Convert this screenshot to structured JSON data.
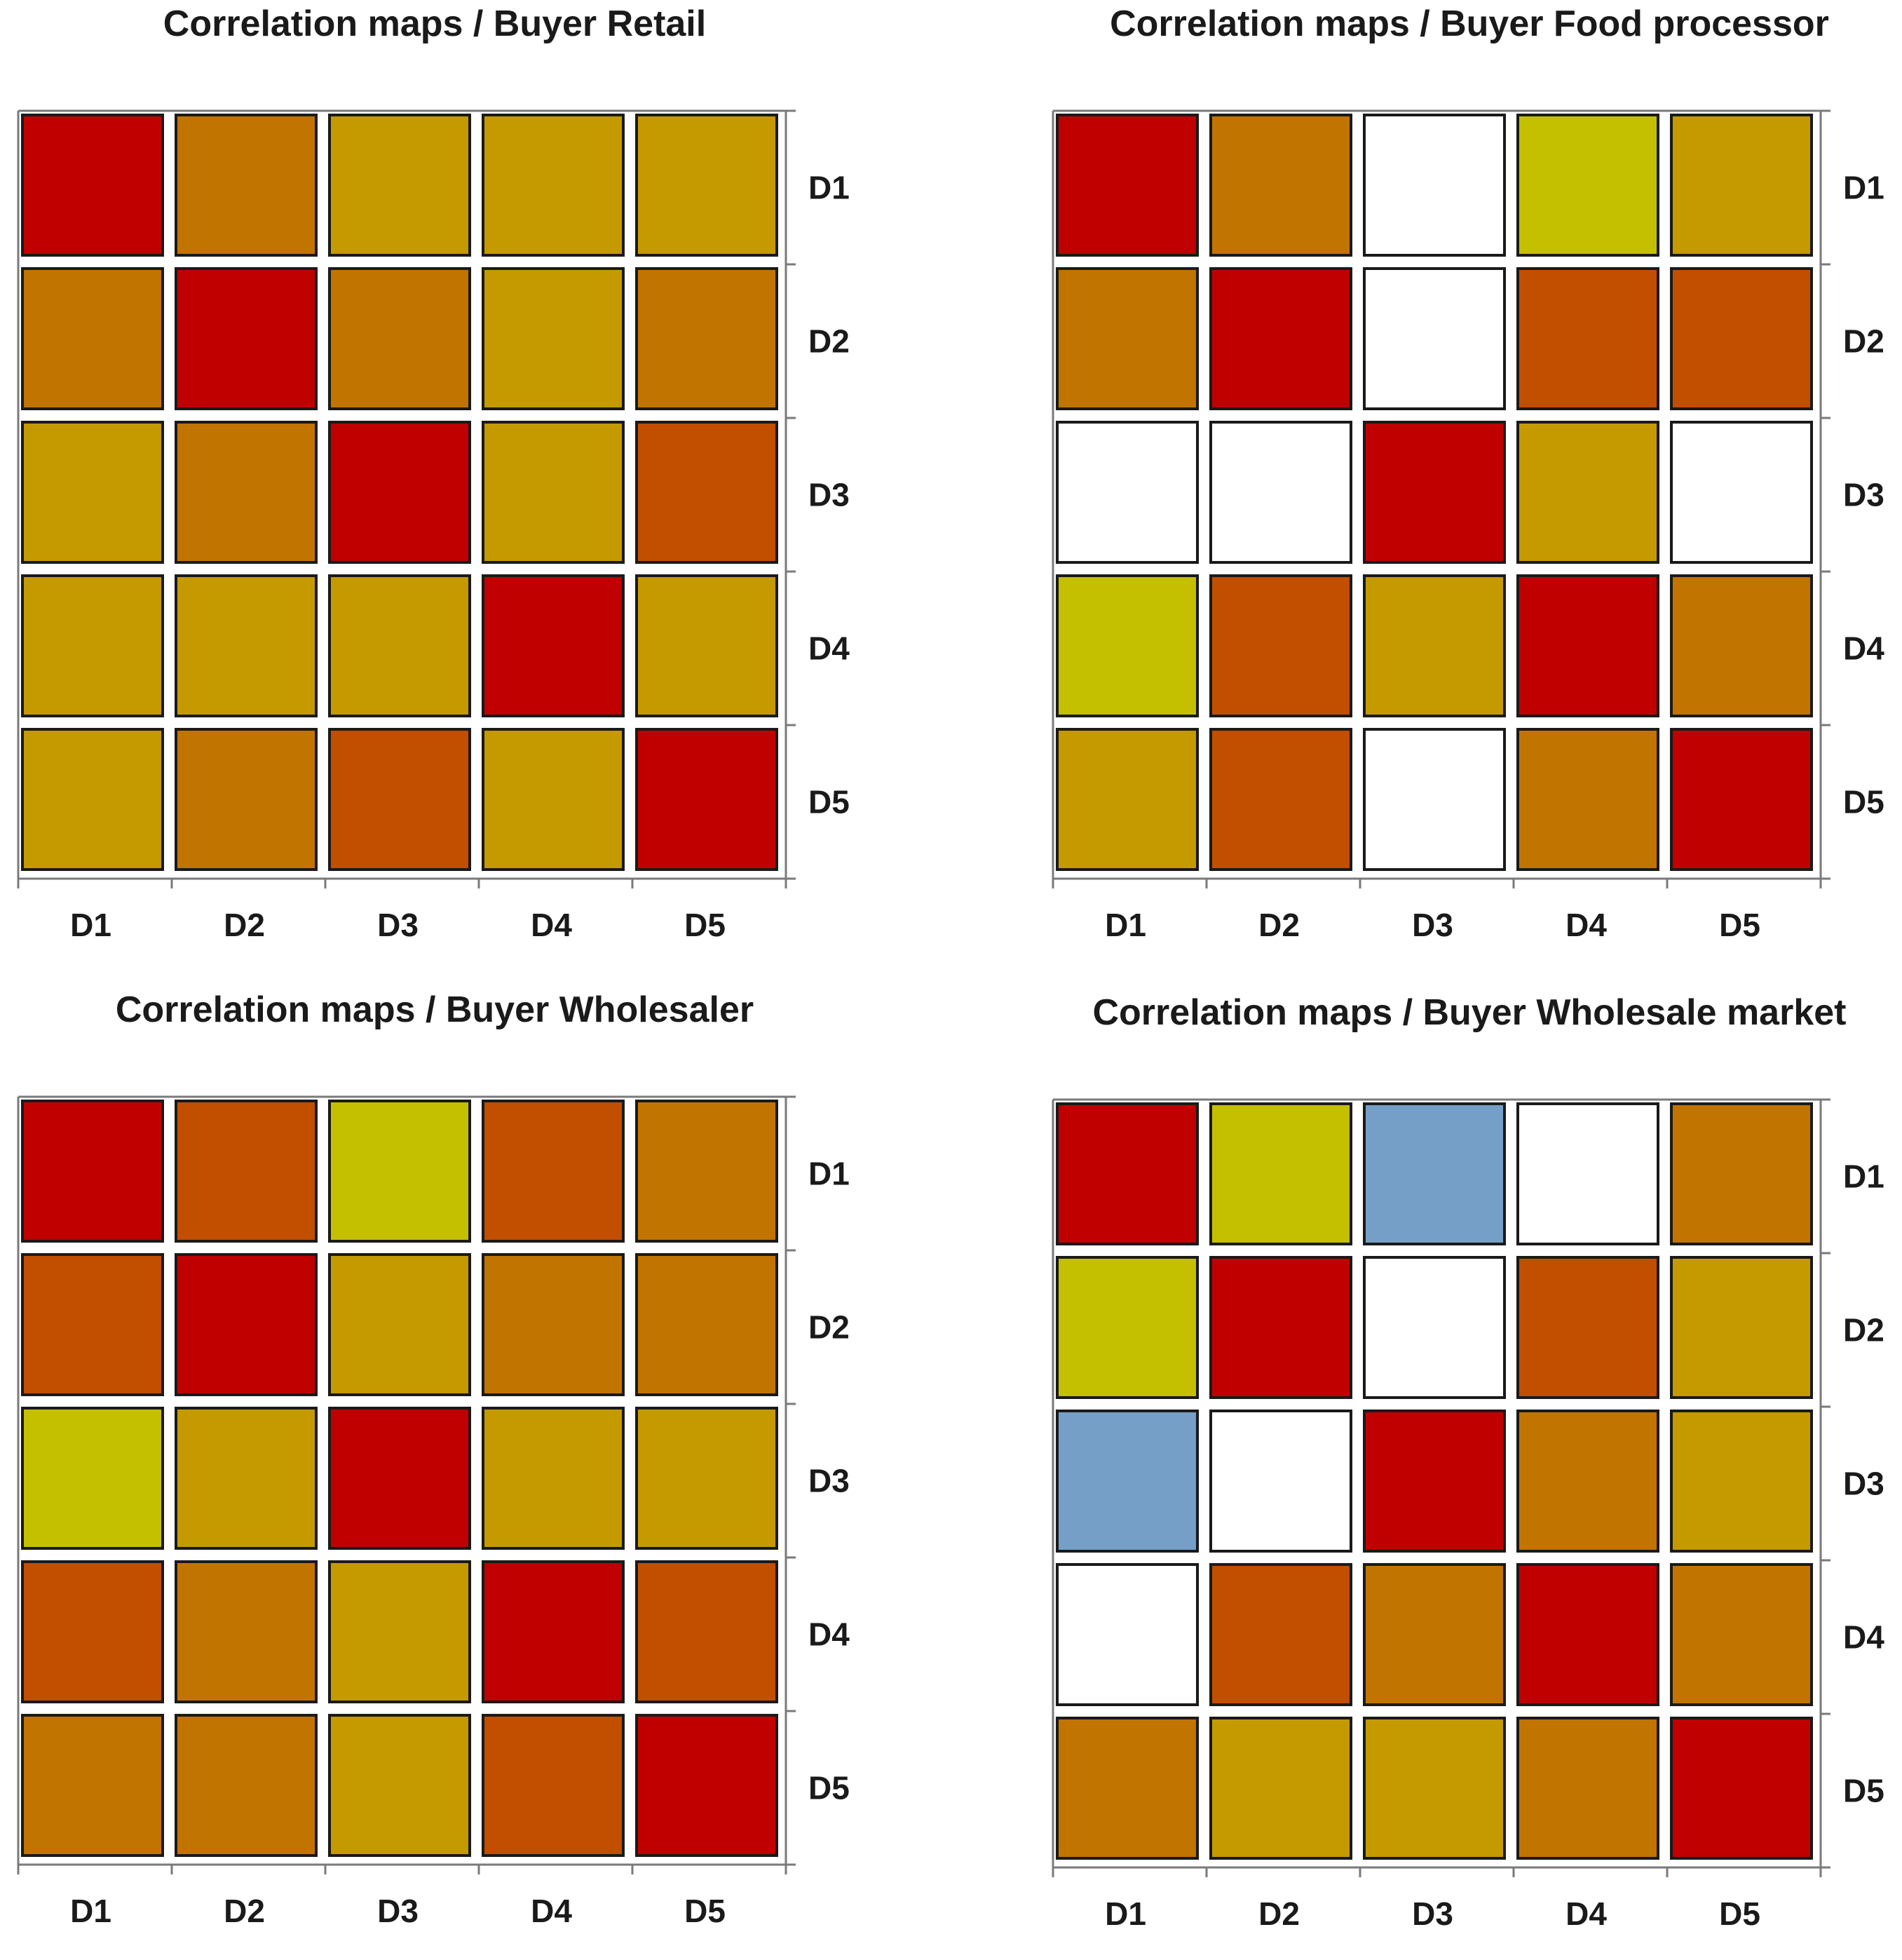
{
  "palette": {
    "1": "#c00000",
    "2": "#c24e00",
    "3": "#c27400",
    "4": "#c49a00",
    "5": "#c4c000",
    "6": "#ffffff",
    "7": "#759fc6"
  },
  "chart_data": [
    {
      "type": "heatmap",
      "title": "Correlation maps / Buyer Retail",
      "x_labels": [
        "D1",
        "D2",
        "D3",
        "D4",
        "D5"
      ],
      "y_labels": [
        "D1",
        "D2",
        "D3",
        "D4",
        "D5"
      ],
      "cells": [
        [
          1,
          3,
          4,
          4,
          4
        ],
        [
          3,
          1,
          3,
          4,
          3
        ],
        [
          4,
          3,
          1,
          4,
          2
        ],
        [
          4,
          4,
          4,
          1,
          4
        ],
        [
          4,
          3,
          2,
          4,
          1
        ]
      ]
    },
    {
      "type": "heatmap",
      "title": "Correlation maps / Buyer Food processor",
      "x_labels": [
        "D1",
        "D2",
        "D3",
        "D4",
        "D5"
      ],
      "y_labels": [
        "D1",
        "D2",
        "D3",
        "D4",
        "D5"
      ],
      "cells": [
        [
          1,
          3,
          6,
          5,
          4
        ],
        [
          3,
          1,
          6,
          2,
          2
        ],
        [
          6,
          6,
          1,
          4,
          6
        ],
        [
          5,
          2,
          4,
          1,
          3
        ],
        [
          4,
          2,
          6,
          3,
          1
        ]
      ]
    },
    {
      "type": "heatmap",
      "title": "Correlation maps / Buyer Wholesaler",
      "x_labels": [
        "D1",
        "D2",
        "D3",
        "D4",
        "D5"
      ],
      "y_labels": [
        "D1",
        "D2",
        "D3",
        "D4",
        "D5"
      ],
      "cells": [
        [
          1,
          2,
          5,
          2,
          3
        ],
        [
          2,
          1,
          4,
          3,
          3
        ],
        [
          5,
          4,
          1,
          4,
          4
        ],
        [
          2,
          3,
          4,
          1,
          2
        ],
        [
          3,
          3,
          4,
          2,
          1
        ]
      ]
    },
    {
      "type": "heatmap",
      "title": "Correlation maps / Buyer Wholesale market",
      "x_labels": [
        "D1",
        "D2",
        "D3",
        "D4",
        "D5"
      ],
      "y_labels": [
        "D1",
        "D2",
        "D3",
        "D4",
        "D5"
      ],
      "cells": [
        [
          1,
          5,
          7,
          6,
          3
        ],
        [
          5,
          1,
          6,
          2,
          4
        ],
        [
          7,
          6,
          1,
          3,
          4
        ],
        [
          6,
          2,
          3,
          1,
          3
        ],
        [
          3,
          4,
          4,
          3,
          1
        ]
      ]
    }
  ]
}
